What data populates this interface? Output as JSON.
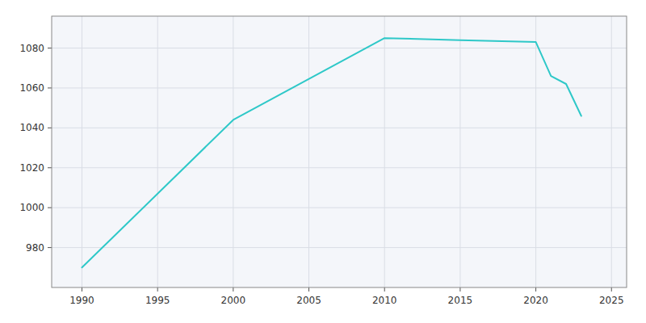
{
  "chart_data": {
    "type": "line",
    "x": [
      1990,
      2000,
      2010,
      2015,
      2020,
      2021,
      2022,
      2023
    ],
    "values": [
      970,
      1044,
      1085,
      1084,
      1083,
      1066,
      1062,
      1046
    ],
    "color": "#2ec8c8",
    "xlim": [
      1988,
      2026
    ],
    "ylim": [
      960,
      1096
    ],
    "xticks": [
      1990,
      1995,
      2000,
      2005,
      2010,
      2015,
      2020,
      2025
    ],
    "yticks": [
      980,
      1000,
      1020,
      1040,
      1060,
      1080
    ],
    "grid": true
  }
}
